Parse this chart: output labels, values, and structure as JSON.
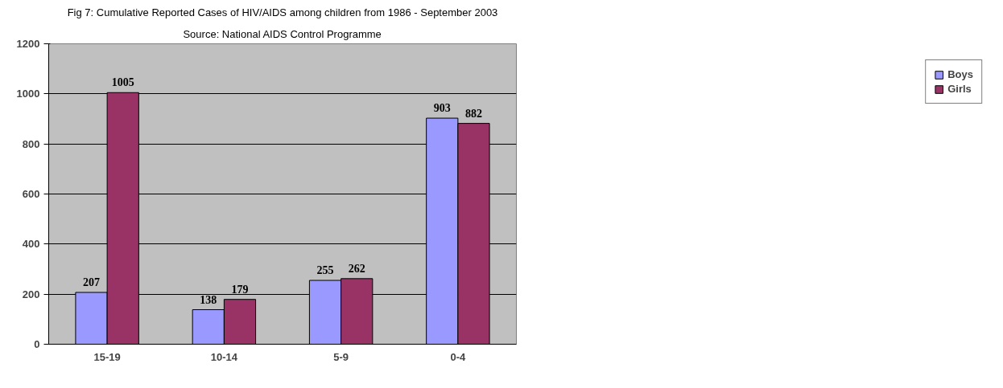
{
  "chart_data": {
    "type": "bar",
    "title": "Fig 7: Cumulative Reported Cases of HIV/AIDS among children from 1986 - September 2003",
    "subtitle": "Source: National AIDS Control Programme",
    "categories": [
      "15-19",
      "10-14",
      "5-9",
      "0-4"
    ],
    "series": [
      {
        "name": "Boys",
        "color": "#9999ff",
        "values": [
          207,
          138,
          255,
          903
        ]
      },
      {
        "name": "Girls",
        "color": "#993366",
        "values": [
          1005,
          179,
          262,
          882
        ]
      }
    ],
    "ylim": [
      0,
      1200
    ],
    "yticks": [
      0,
      200,
      400,
      600,
      800,
      1000,
      1200
    ],
    "grid": "y",
    "legend": "right",
    "data_labels": true
  }
}
